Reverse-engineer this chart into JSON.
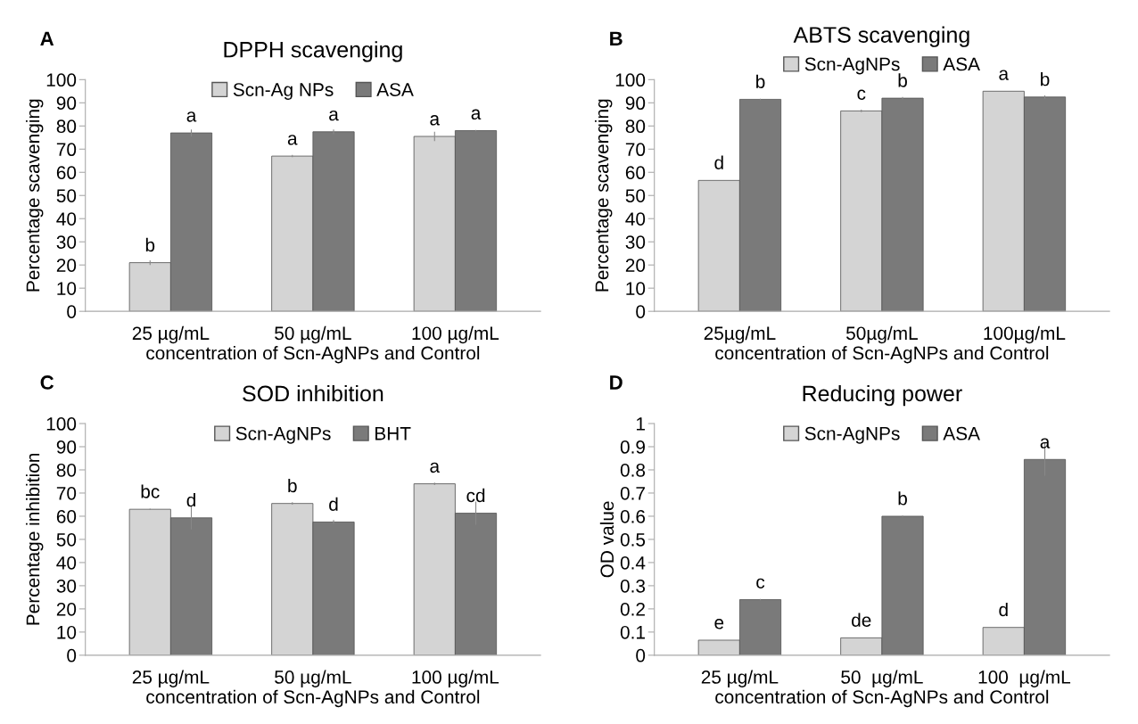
{
  "chart_data": [
    {
      "type": "bar",
      "title": "DPPH scavenging",
      "xlabel": "concentration of Scn-AgNPs and Control",
      "ylabel": "Percentage scavenging",
      "annotations": [
        "A"
      ],
      "categories": [
        "25 µg/mL",
        "50 µg/mL",
        "100 µg/mL"
      ],
      "ylim": [
        0,
        100
      ],
      "yticks": [
        0,
        10,
        20,
        30,
        40,
        50,
        60,
        70,
        80,
        90,
        100
      ],
      "legend": "top",
      "series": [
        {
          "name": "Scn-Ag NPs",
          "color": "#d4d4d4",
          "values": [
            21,
            67,
            75.5
          ],
          "errors": [
            1,
            0.5,
            2
          ],
          "value_labels": [
            "b",
            "a",
            "a"
          ]
        },
        {
          "name": "ASA",
          "color": "#7a7a7a",
          "values": [
            77,
            77.5,
            78
          ],
          "errors": [
            1.5,
            1,
            0.3
          ],
          "value_labels": [
            "a",
            "a",
            "a"
          ]
        }
      ]
    },
    {
      "type": "bar",
      "title": "ABTS scavenging",
      "xlabel": "concentration of Scn-AgNPs and Control",
      "ylabel": "Percentage scavenging",
      "annotations": [
        "B"
      ],
      "categories": [
        "25µg/mL",
        "50µg/mL",
        "100µg/mL"
      ],
      "ylim": [
        0,
        100
      ],
      "yticks": [
        0,
        10,
        20,
        30,
        40,
        50,
        60,
        70,
        80,
        90,
        100
      ],
      "legend": "top",
      "series": [
        {
          "name": "Scn-AgNPs",
          "color": "#d4d4d4",
          "values": [
            56.5,
            86.5,
            95
          ],
          "errors": [
            null,
            0.5,
            null
          ],
          "value_labels": [
            "d",
            "c",
            "a"
          ]
        },
        {
          "name": "ASA",
          "color": "#7a7a7a",
          "values": [
            91.5,
            92,
            92.5
          ],
          "errors": [
            0.3,
            0.5,
            0.7
          ],
          "value_labels": [
            "b",
            "b",
            "b"
          ]
        }
      ]
    },
    {
      "type": "bar",
      "title": "SOD inhibition",
      "xlabel": "concentration of Scn-AgNPs and Control",
      "ylabel": "Percentage inhibition",
      "annotations": [
        "C"
      ],
      "categories": [
        "25 µg/mL",
        "50 µg/mL",
        "100 µg/mL"
      ],
      "ylim": [
        0,
        100
      ],
      "yticks": [
        0,
        10,
        20,
        30,
        40,
        50,
        60,
        70,
        80,
        90,
        100
      ],
      "legend": "top",
      "series": [
        {
          "name": "Scn-AgNPs",
          "color": "#d4d4d4",
          "values": [
            63,
            65.5,
            74
          ],
          "errors": [
            0.3,
            0.5,
            0.5
          ],
          "value_labels": [
            "bc",
            "b",
            "a"
          ]
        },
        {
          "name": "BHT",
          "color": "#7a7a7a",
          "values": [
            59.3,
            57.5,
            61.3
          ],
          "errors": [
            5,
            0.8,
            5
          ],
          "value_labels": [
            "d",
            "d",
            "cd"
          ]
        }
      ]
    },
    {
      "type": "bar",
      "title": "Reducing power",
      "xlabel": "concentration of Scn-AgNPs and Control",
      "ylabel": "OD value",
      "annotations": [
        "D"
      ],
      "categories": [
        "25 µg/mL",
        "50  µg/mL",
        "100  µg/mL"
      ],
      "ylim": [
        0,
        1
      ],
      "yticks": [
        0,
        0.1,
        0.2,
        0.3,
        0.4,
        0.5,
        0.6,
        0.7,
        0.8,
        0.9,
        1
      ],
      "legend": "top",
      "series": [
        {
          "name": "Scn-AgNPs",
          "color": "#d4d4d4",
          "values": [
            0.065,
            0.075,
            0.12
          ],
          "errors": [
            null,
            null,
            null
          ],
          "value_labels": [
            "e",
            "de",
            "d"
          ]
        },
        {
          "name": "ASA",
          "color": "#7a7a7a",
          "values": [
            0.24,
            0.6,
            0.845
          ],
          "errors": [
            0.003,
            0.003,
            0.07
          ],
          "value_labels": [
            "c",
            "b",
            "a"
          ]
        }
      ]
    }
  ]
}
